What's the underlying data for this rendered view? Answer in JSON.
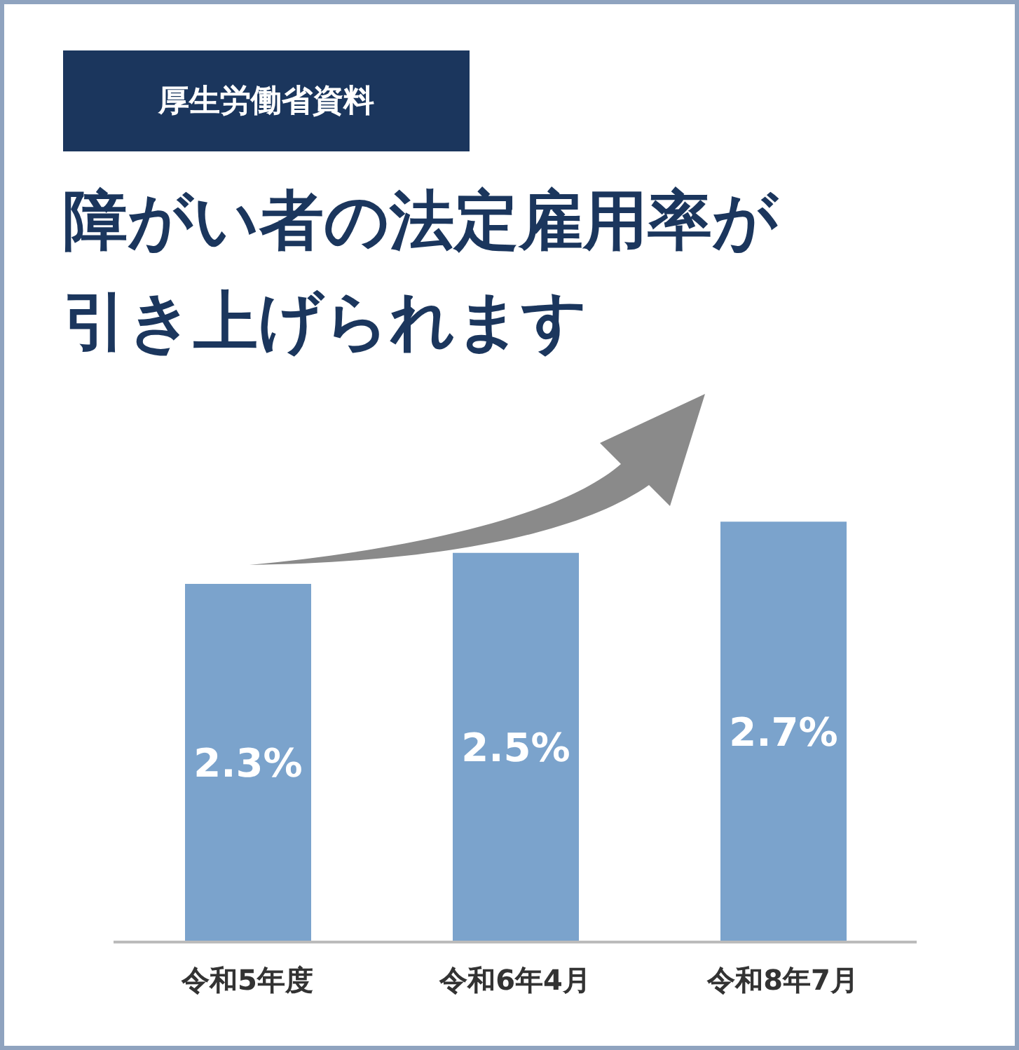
{
  "chart_data": {
    "type": "bar",
    "subtitle": "厚生労働省資料",
    "title": "障がい者の法定雇用率が引き上げられます",
    "categories": [
      "令和5年度",
      "令和6年4月",
      "令和8年7月"
    ],
    "values": [
      2.3,
      2.5,
      2.7
    ],
    "value_labels": [
      "2.3%",
      "2.5%",
      "2.7%"
    ],
    "color": "#7ba3cc",
    "tick_labels": "x"
  }
}
